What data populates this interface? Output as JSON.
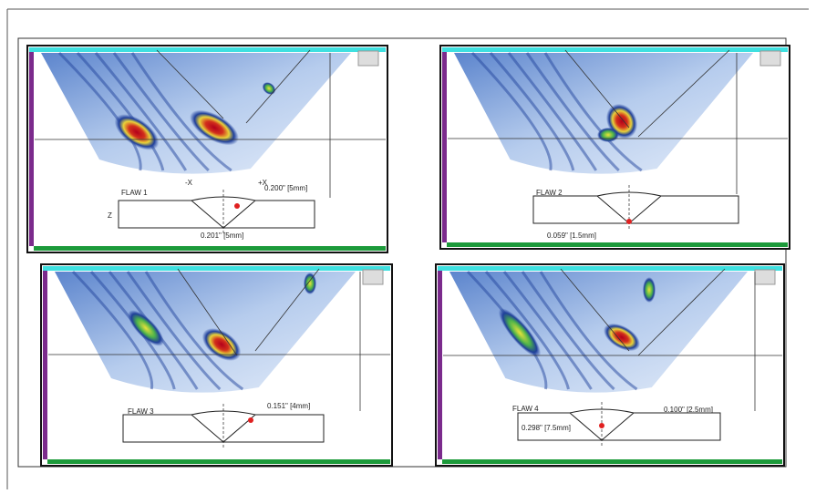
{
  "panels": [
    {
      "flaw": "FLAW 1",
      "labels": [
        "-X",
        "+X",
        "Z",
        "0.200\" [5mm]",
        "0.201\" [5mm]"
      ]
    },
    {
      "flaw": "FLAW 2",
      "labels": [
        "0.059\" [1.5mm]"
      ]
    },
    {
      "flaw": "FLAW 3",
      "labels": [
        "0.151\" [4mm]"
      ]
    },
    {
      "flaw": "FLAW 4",
      "labels": [
        "0.100\" [2.5mm]",
        "0.298\" [7.5mm]"
      ]
    }
  ]
}
